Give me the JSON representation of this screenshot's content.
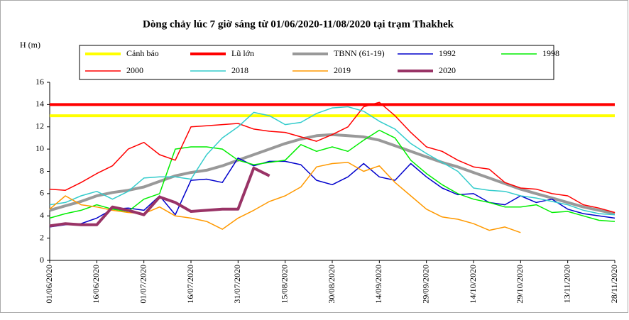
{
  "chart_data": {
    "type": "line",
    "title": "Dòng chảy lúc 7 giờ sáng từ 01/06/2020-11/08/2020 tại trạm Thakhek",
    "y_label": "H (m)",
    "categories": [
      "01/06/2020",
      null,
      null,
      "16/06/2020",
      null,
      null,
      "01/07/2020",
      null,
      null,
      "16/07/2020",
      null,
      null,
      "31/07/2020",
      null,
      null,
      "15/08/2020",
      null,
      null,
      "30/08/2020",
      null,
      null,
      "14/09/2020",
      null,
      null,
      "29/09/2020",
      null,
      null,
      "14/10/2020",
      null,
      null,
      "29/10/2020",
      null,
      null,
      "13/11/2020",
      null,
      null,
      "28/11/2020"
    ],
    "ylim": [
      0,
      16
    ],
    "yticks": [
      0,
      2,
      4,
      6,
      8,
      10,
      12,
      14,
      16
    ],
    "series": [
      {
        "name": "Cảnh báo",
        "color": "#ffff00",
        "width": 4,
        "values": [
          13,
          13,
          13,
          13,
          13,
          13,
          13,
          13,
          13,
          13,
          13,
          13,
          13,
          13,
          13,
          13,
          13,
          13,
          13,
          13,
          13,
          13,
          13,
          13,
          13,
          13,
          13,
          13,
          13,
          13,
          13,
          13,
          13,
          13,
          13,
          13,
          13
        ]
      },
      {
        "name": "Lũ lớn",
        "color": "#ff0000",
        "width": 4,
        "values": [
          14,
          14,
          14,
          14,
          14,
          14,
          14,
          14,
          14,
          14,
          14,
          14,
          14,
          14,
          14,
          14,
          14,
          14,
          14,
          14,
          14,
          14,
          14,
          14,
          14,
          14,
          14,
          14,
          14,
          14,
          14,
          14,
          14,
          14,
          14,
          14,
          14
        ]
      },
      {
        "name": "TBNN (61-19)",
        "color": "#999999",
        "width": 4,
        "values": [
          4.5,
          4.9,
          5.3,
          5.8,
          6.1,
          6.3,
          6.6,
          7.1,
          7.6,
          7.9,
          8.1,
          8.5,
          9.0,
          9.5,
          10.0,
          10.5,
          10.9,
          11.2,
          11.3,
          11.2,
          11.1,
          10.8,
          10.3,
          9.8,
          9.3,
          8.8,
          8.4,
          7.9,
          7.4,
          6.9,
          6.4,
          6.0,
          5.6,
          5.2,
          4.8,
          4.5,
          4.2
        ]
      },
      {
        "name": "1992",
        "color": "#0000cc",
        "width": 1.5,
        "values": [
          3.0,
          3.2,
          3.3,
          3.8,
          4.6,
          4.7,
          4.5,
          5.8,
          4.1,
          7.2,
          7.3,
          7.0,
          9.2,
          8.5,
          8.9,
          8.9,
          8.6,
          7.2,
          6.8,
          7.5,
          8.7,
          7.5,
          7.2,
          8.7,
          7.5,
          6.5,
          5.9,
          6.0,
          5.2,
          5.0,
          5.8,
          5.2,
          5.5,
          4.6,
          4.2,
          4.0,
          3.8
        ]
      },
      {
        "name": "1998",
        "color": "#00ee00",
        "width": 1.5,
        "values": [
          3.8,
          4.2,
          4.5,
          5.0,
          4.6,
          4.4,
          5.5,
          6.0,
          10.0,
          10.2,
          10.2,
          10.0,
          9.0,
          8.6,
          8.8,
          9.0,
          10.4,
          9.8,
          10.2,
          9.8,
          10.8,
          11.7,
          11.0,
          9.0,
          7.8,
          6.8,
          6.0,
          5.5,
          5.2,
          4.8,
          4.8,
          5.0,
          4.3,
          4.4,
          4.0,
          3.6,
          3.5
        ]
      },
      {
        "name": "2000",
        "color": "#ff0000",
        "width": 1.5,
        "values": [
          6.4,
          6.3,
          7.0,
          7.8,
          8.5,
          10.0,
          10.6,
          9.5,
          9.0,
          12.0,
          12.1,
          12.2,
          12.3,
          11.8,
          11.6,
          11.5,
          11.1,
          10.7,
          11.3,
          12.0,
          13.8,
          14.2,
          13.0,
          11.5,
          10.2,
          9.8,
          9.0,
          8.4,
          8.2,
          7.0,
          6.5,
          6.4,
          6.0,
          5.8,
          5.0,
          4.7,
          4.3
        ]
      },
      {
        "name": "2018",
        "color": "#33cccc",
        "width": 1.5,
        "values": [
          5.0,
          5.2,
          5.8,
          6.2,
          5.5,
          6.2,
          7.4,
          7.5,
          7.5,
          7.3,
          9.5,
          11.0,
          12.0,
          13.3,
          13.0,
          12.2,
          12.4,
          13.2,
          13.7,
          13.8,
          13.4,
          12.5,
          11.8,
          10.5,
          9.6,
          8.8,
          8.0,
          6.5,
          6.3,
          6.2,
          5.8,
          5.6,
          5.3,
          5.0,
          4.5,
          4.2,
          4.1
        ]
      },
      {
        "name": "2019",
        "color": "#ff9900",
        "width": 1.5,
        "values": [
          4.6,
          5.8,
          5.0,
          4.8,
          4.5,
          4.3,
          4.2,
          4.8,
          4.0,
          3.8,
          3.5,
          2.8,
          3.8,
          4.5,
          5.3,
          5.8,
          6.6,
          8.4,
          8.7,
          8.8,
          8.0,
          8.5,
          7.0,
          5.8,
          4.6,
          3.9,
          3.7,
          3.3,
          2.7,
          3.0,
          2.5,
          null,
          null,
          null,
          null,
          null,
          null
        ]
      },
      {
        "name": "2020",
        "color": "#993366",
        "width": 4,
        "values": [
          3.1,
          3.3,
          3.2,
          3.2,
          4.8,
          4.5,
          4.1,
          5.7,
          5.2,
          4.4,
          4.5,
          4.6,
          4.6,
          8.3,
          7.6,
          null,
          null,
          null,
          null,
          null,
          null,
          null,
          null,
          null,
          null,
          null,
          null,
          null,
          null,
          null,
          null,
          null,
          null,
          null,
          null,
          null,
          null
        ]
      }
    ]
  }
}
